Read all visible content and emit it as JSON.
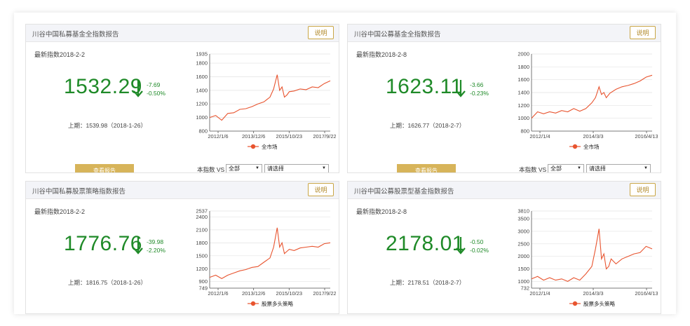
{
  "explain_label": "说明",
  "report_label": "查看报告",
  "vs_label": "本指数 VS",
  "panels": [
    {
      "title": "川谷中国私募基金全指数报告",
      "latest": "最新指数2018-2-2",
      "value": "1532.29",
      "change_abs": "-7.69",
      "change_pct": "-0.50%",
      "prev": "上期：1539.98（2018-1-26）",
      "vs_select1": "全部",
      "vs_select2": "请选择",
      "chart_data": {
        "type": "line",
        "ylim": [
          800,
          1935
        ],
        "yticks": [
          "1935",
          "1800",
          "1600",
          "1400",
          "1200",
          "1000",
          "800"
        ],
        "ytick_values": [
          1935,
          1800,
          1600,
          1400,
          1200,
          1000,
          800
        ],
        "xticks": [
          "2012/1/6",
          "2013/12/6",
          "2015/10/23",
          "2017/9/22"
        ],
        "series": [
          {
            "name": "全市场",
            "color": "#e8542f",
            "x": [
              0,
              0.05,
              0.1,
              0.15,
              0.2,
              0.25,
              0.3,
              0.35,
              0.4,
              0.45,
              0.5,
              0.53,
              0.56,
              0.58,
              0.6,
              0.62,
              0.64,
              0.66,
              0.7,
              0.75,
              0.8,
              0.85,
              0.9,
              0.95,
              1.0
            ],
            "values": [
              1000,
              1030,
              960,
              1060,
              1070,
              1120,
              1130,
              1160,
              1200,
              1230,
              1300,
              1420,
              1630,
              1400,
              1450,
              1300,
              1330,
              1380,
              1390,
              1420,
              1410,
              1450,
              1440,
              1500,
              1540
            ]
          }
        ]
      }
    },
    {
      "title": "川谷中国公募基金全指数报告",
      "latest": "最新指数2018-2-8",
      "value": "1623.11",
      "change_abs": "-3.66",
      "change_pct": "-0.23%",
      "prev": "上期：1626.77（2018-2-7）",
      "vs_select1": "全部",
      "vs_select2": "请选择",
      "chart_data": {
        "type": "line",
        "ylim": [
          800,
          2000
        ],
        "yticks": [
          "2000",
          "1800",
          "1600",
          "1400",
          "1200",
          "1000",
          "800"
        ],
        "ytick_values": [
          2000,
          1800,
          1600,
          1400,
          1200,
          1000,
          800
        ],
        "xticks": [
          "2012/1/4",
          "2014/3/3",
          "2016/4/13"
        ],
        "series": [
          {
            "name": "全市场",
            "color": "#e8542f",
            "x": [
              0,
              0.05,
              0.1,
              0.15,
              0.2,
              0.25,
              0.3,
              0.35,
              0.4,
              0.45,
              0.5,
              0.53,
              0.56,
              0.58,
              0.6,
              0.62,
              0.65,
              0.7,
              0.75,
              0.8,
              0.85,
              0.9,
              0.95,
              1.0
            ],
            "values": [
              1000,
              1100,
              1070,
              1100,
              1080,
              1120,
              1100,
              1150,
              1110,
              1150,
              1240,
              1320,
              1490,
              1370,
              1400,
              1320,
              1390,
              1450,
              1490,
              1510,
              1540,
              1580,
              1640,
              1670
            ]
          }
        ]
      }
    },
    {
      "title": "川谷中国私募股票策略指数报告",
      "latest": "最新指数2018-2-2",
      "value": "1776.76",
      "change_abs": "-39.98",
      "change_pct": "-2.20%",
      "prev": "上期：1816.75（2018-1-26）",
      "chart_data": {
        "type": "line",
        "ylim": [
          749,
          2537
        ],
        "yticks": [
          "2537",
          "2400",
          "2100",
          "1800",
          "1500",
          "1200",
          "900",
          "749"
        ],
        "ytick_values": [
          2537,
          2400,
          2100,
          1800,
          1500,
          1200,
          900,
          749
        ],
        "xticks": [
          "2012/1/6",
          "2013/12/6",
          "2015/10/23",
          "2017/9/22"
        ],
        "series": [
          {
            "name": "股票多头策略",
            "color": "#e8542f",
            "x": [
              0,
              0.05,
              0.1,
              0.15,
              0.2,
              0.25,
              0.3,
              0.35,
              0.4,
              0.45,
              0.5,
              0.53,
              0.56,
              0.58,
              0.6,
              0.62,
              0.64,
              0.66,
              0.7,
              0.75,
              0.8,
              0.85,
              0.9,
              0.95,
              1.0
            ],
            "values": [
              1000,
              1050,
              970,
              1050,
              1100,
              1150,
              1180,
              1230,
              1250,
              1350,
              1450,
              1700,
              2150,
              1700,
              1800,
              1550,
              1600,
              1650,
              1620,
              1680,
              1700,
              1720,
              1700,
              1780,
              1800
            ]
          }
        ]
      }
    },
    {
      "title": "川谷中国公募股票型基金指数报告",
      "latest": "最新指数2018-2-8",
      "value": "2178.01",
      "change_abs": "-0.50",
      "change_pct": "-0.02%",
      "prev": "上期：2178.51（2018-2-7）",
      "chart_data": {
        "type": "line",
        "ylim": [
          732,
          3810
        ],
        "yticks": [
          "3810",
          "3500",
          "3000",
          "2500",
          "2000",
          "1500",
          "1000",
          "732"
        ],
        "ytick_values": [
          3810,
          3500,
          3000,
          2500,
          2000,
          1500,
          1000,
          732
        ],
        "xticks": [
          "2012/1/4",
          "2014/3/3",
          "2016/4/13"
        ],
        "series": [
          {
            "name": "股票多头策略",
            "color": "#e8542f",
            "x": [
              0,
              0.05,
              0.1,
              0.15,
              0.2,
              0.25,
              0.3,
              0.35,
              0.4,
              0.45,
              0.5,
              0.53,
              0.56,
              0.58,
              0.6,
              0.62,
              0.64,
              0.66,
              0.7,
              0.75,
              0.8,
              0.85,
              0.9,
              0.95,
              1.0
            ],
            "values": [
              1100,
              1200,
              1050,
              1150,
              1050,
              1100,
              1000,
              1150,
              1050,
              1300,
              1600,
              2300,
              3100,
              1900,
              2100,
              1500,
              1600,
              1900,
              1700,
              1900,
              2000,
              2100,
              2150,
              2400,
              2300
            ]
          }
        ]
      }
    }
  ]
}
